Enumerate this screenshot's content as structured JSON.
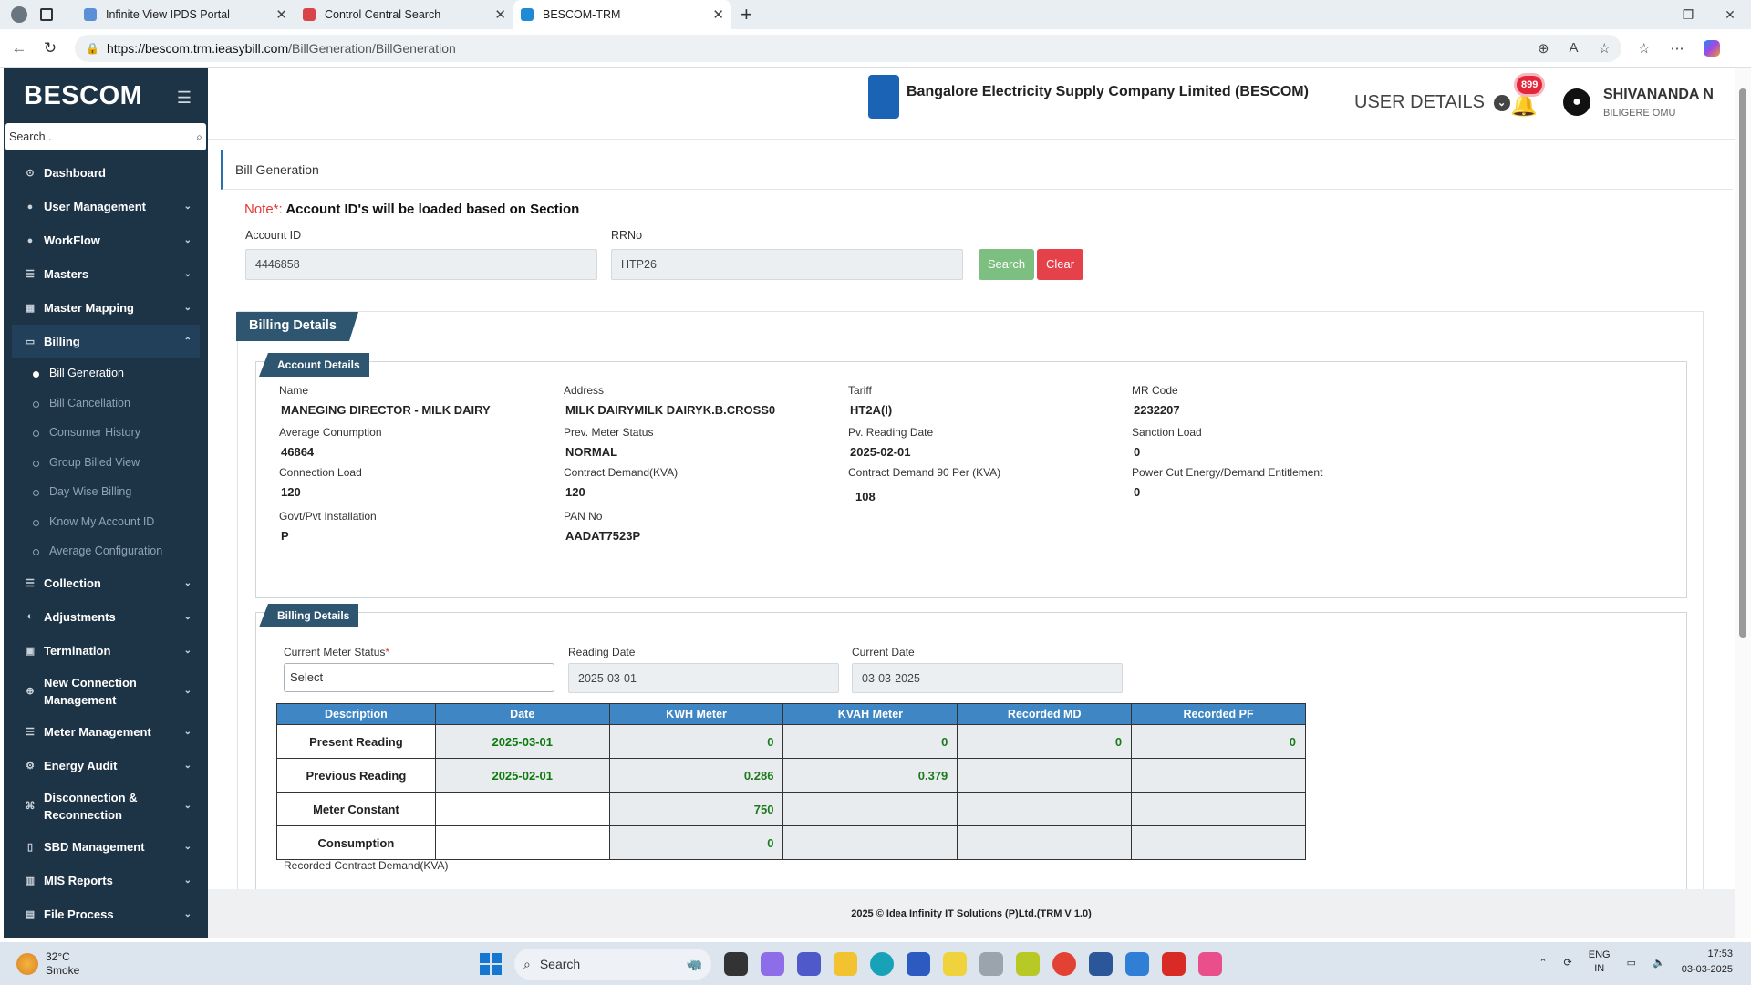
{
  "browser": {
    "tabs": [
      {
        "title": "Infinite View IPDS Portal",
        "color": "#5b8fd6"
      },
      {
        "title": "Control Central Search",
        "color": "#d9434a"
      },
      {
        "title": "BESCOM-TRM",
        "color": "#1f8ad6"
      }
    ],
    "url_domain": "https://bescom.trm.ieasybill.com",
    "url_path": "/BillGeneration/BillGeneration"
  },
  "sidebar": {
    "brand": "BESCOM",
    "search_placeholder": "Search..",
    "items": [
      {
        "label": "Dashboard",
        "icon": "dashboard-icon",
        "glyph": "⊙"
      },
      {
        "label": "User Management",
        "icon": "user-icon",
        "glyph": "●"
      },
      {
        "label": "WorkFlow",
        "icon": "workflow-icon",
        "glyph": "●"
      },
      {
        "label": "Masters",
        "icon": "list-icon",
        "glyph": "☰"
      },
      {
        "label": "Master Mapping",
        "icon": "mapping-icon",
        "glyph": "▦"
      },
      {
        "label": "Billing",
        "icon": "monitor-icon",
        "glyph": "▭"
      }
    ],
    "billing_sub": [
      "Bill Generation",
      "Bill Cancellation",
      "Consumer History",
      "Group Billed View",
      "Day Wise Billing",
      "Know My Account ID",
      "Average Configuration"
    ],
    "items2": [
      {
        "label": "Collection",
        "icon": "collection-icon",
        "glyph": "☰"
      },
      {
        "label": "Adjustments",
        "icon": "adjust-icon",
        "glyph": "◐"
      },
      {
        "label": "Termination",
        "icon": "termination-icon",
        "glyph": "▣"
      },
      {
        "label": "New Connection Management",
        "icon": "plug-icon",
        "glyph": "⊕"
      },
      {
        "label": "Meter Management",
        "icon": "meter-icon",
        "glyph": "☰"
      },
      {
        "label": "Energy Audit",
        "icon": "gears-icon",
        "glyph": "⚙"
      },
      {
        "label": "Disconnection & Reconnection",
        "icon": "link-icon",
        "glyph": "⌘"
      },
      {
        "label": "SBD Management",
        "icon": "mobile-icon",
        "glyph": "▯"
      },
      {
        "label": "MIS Reports",
        "icon": "chart-icon",
        "glyph": "▥"
      },
      {
        "label": "File Process",
        "icon": "file-icon",
        "glyph": "▤"
      }
    ]
  },
  "header": {
    "company": "Bangalore Electricity Supply Company Limited (BESCOM)",
    "user_details": "USER DETAILS",
    "notifications": "899",
    "user_name": "SHIVANANDA N",
    "user_office": "BILIGERE OMU"
  },
  "page": {
    "breadcrumb": "Bill Generation",
    "note_prefix": "Note*:",
    "note_text": " Account ID's will be loaded based on Section",
    "account_label": "Account ID",
    "account_value": "4446858",
    "rrno_label": "RRNo",
    "rrno_value": "HTP26",
    "search": "Search",
    "clear": "Clear"
  },
  "billing": {
    "title": "Billing Details",
    "account_title": "Account Details",
    "fields": [
      {
        "label": "Name",
        "value": "MANEGING DIRECTOR - MILK DAIRY"
      },
      {
        "label": "Address",
        "value": "MILK DAIRYMILK DAIRYK.B.CROSS0"
      },
      {
        "label": "Tariff",
        "value": "HT2A(I)"
      },
      {
        "label": "MR Code",
        "value": "2232207"
      },
      {
        "label": "Average Conumption",
        "value": "46864"
      },
      {
        "label": "Prev. Meter Status",
        "value": "NORMAL"
      },
      {
        "label": "Pv. Reading Date",
        "value": "2025-02-01"
      },
      {
        "label": "Sanction Load",
        "value": "0"
      },
      {
        "label": "Connection Load",
        "value": "120"
      },
      {
        "label": "Contract Demand(KVA)",
        "value": "120"
      },
      {
        "label": "Contract Demand 90 Per (KVA)",
        "value": "108"
      },
      {
        "label": "Power Cut Energy/Demand Entitlement",
        "value": "0"
      },
      {
        "label": "Govt/Pvt Installation",
        "value": "P"
      },
      {
        "label": "PAN No",
        "value": "AADAT7523P"
      }
    ],
    "section2_title": "Billing Details",
    "meter_status_label": "Current Meter Status",
    "meter_status_value": "Select",
    "reading_date_label": "Reading Date",
    "reading_date_value": "2025-03-01",
    "current_date_label": "Current Date",
    "current_date_value": "03-03-2025",
    "table": {
      "headers": [
        "Description",
        "Date",
        "KWH Meter",
        "KVAH Meter",
        "Recorded MD",
        "Recorded PF"
      ],
      "rows": [
        [
          "Present Reading",
          "2025-03-01",
          "0",
          "0",
          "0",
          "0"
        ],
        [
          "Previous Reading",
          "2025-02-01",
          "0.286",
          "0.379",
          "",
          ""
        ],
        [
          "Meter Constant",
          "",
          "750",
          "",
          "",
          ""
        ],
        [
          "Consumption",
          "",
          "0",
          "",
          "",
          ""
        ]
      ]
    },
    "recorded_cd_label": "Recorded Contract Demand(KVA)"
  },
  "footer": "2025 © Idea Infinity IT Solutions (P)Ltd.(TRM V 1.0)",
  "taskbar": {
    "temp": "32°C",
    "weather": "Smoke",
    "search": "Search",
    "lang1": "ENG",
    "lang2": "IN",
    "time": "17:53",
    "date": "03-03-2025"
  }
}
